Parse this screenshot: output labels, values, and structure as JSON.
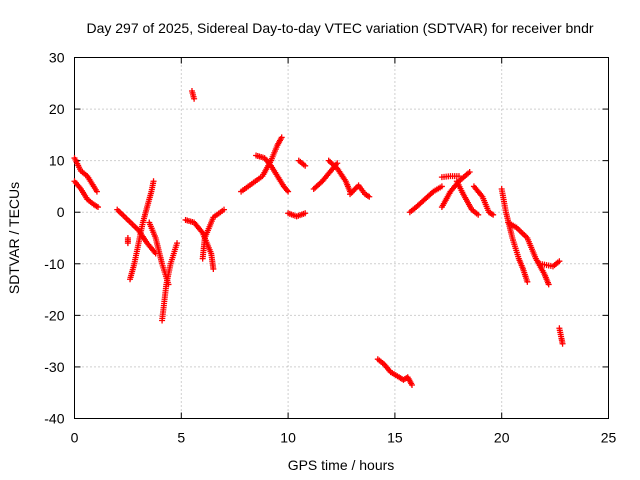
{
  "chart_data": {
    "type": "scatter",
    "title": "Day 297 of 2025, Sidereal Day-to-day VTEC variation (SDTVAR) for receiver bndr",
    "xlabel": "GPS time / hours",
    "ylabel": "SDTVAR / TECUs",
    "xlim": [
      0,
      25
    ],
    "ylim": [
      -40,
      30
    ],
    "xticks": [
      0,
      5,
      10,
      15,
      20,
      25
    ],
    "yticks": [
      -40,
      -30,
      -20,
      -10,
      0,
      10,
      20,
      30
    ],
    "grid": true,
    "marker": "plus",
    "color": "#ff0000",
    "tracks": [
      [
        [
          0.0,
          10.5
        ],
        [
          0.3,
          8.0
        ],
        [
          0.6,
          7.0
        ],
        [
          0.9,
          5.0
        ],
        [
          1.05,
          4.0
        ]
      ],
      [
        [
          0.0,
          6.0
        ],
        [
          0.3,
          4.5
        ],
        [
          0.6,
          2.5
        ],
        [
          0.9,
          1.5
        ],
        [
          1.1,
          1.0
        ]
      ],
      [
        [
          2.5,
          -5.0
        ],
        [
          2.5,
          -6.0
        ]
      ],
      [
        [
          2.6,
          -13.0
        ],
        [
          2.8,
          -10.0
        ],
        [
          3.0,
          -6.0
        ],
        [
          3.2,
          -2.0
        ],
        [
          3.4,
          1.0
        ],
        [
          3.6,
          4.0
        ],
        [
          3.7,
          6.0
        ]
      ],
      [
        [
          2.0,
          0.5
        ],
        [
          2.5,
          -1.5
        ],
        [
          3.0,
          -3.5
        ],
        [
          3.4,
          -6.0
        ],
        [
          3.8,
          -8.0
        ]
      ],
      [
        [
          3.5,
          -2.0
        ],
        [
          3.8,
          -5.0
        ],
        [
          4.1,
          -10.0
        ],
        [
          4.4,
          -14.0
        ]
      ],
      [
        [
          4.1,
          -21.0
        ],
        [
          4.3,
          -14.0
        ],
        [
          4.5,
          -10.0
        ],
        [
          4.8,
          -6.0
        ]
      ],
      [
        [
          5.5,
          23.5
        ],
        [
          5.6,
          22.0
        ]
      ],
      [
        [
          5.2,
          -1.5
        ],
        [
          5.6,
          -2.0
        ],
        [
          6.0,
          -4.0
        ],
        [
          6.4,
          -8.0
        ],
        [
          6.5,
          -11.0
        ]
      ],
      [
        [
          6.0,
          -9.0
        ],
        [
          6.1,
          -5.0
        ],
        [
          6.5,
          -1.0
        ],
        [
          7.0,
          0.5
        ]
      ],
      [
        [
          7.8,
          4.0
        ],
        [
          8.3,
          5.5
        ],
        [
          8.8,
          7.0
        ],
        [
          9.2,
          10.0
        ],
        [
          9.5,
          13.0
        ],
        [
          9.7,
          14.5
        ]
      ],
      [
        [
          8.5,
          11.0
        ],
        [
          8.9,
          10.5
        ],
        [
          9.2,
          9.0
        ],
        [
          9.5,
          7.0
        ],
        [
          9.8,
          5.0
        ],
        [
          10.0,
          4.0
        ]
      ],
      [
        [
          10.0,
          -0.2
        ],
        [
          10.4,
          -0.8
        ],
        [
          10.8,
          -0.2
        ]
      ],
      [
        [
          10.5,
          10.0
        ],
        [
          10.8,
          9.0
        ]
      ],
      [
        [
          11.2,
          4.5
        ],
        [
          11.6,
          6.0
        ],
        [
          12.0,
          8.0
        ],
        [
          12.3,
          9.5
        ]
      ],
      [
        [
          11.9,
          10.0
        ],
        [
          12.3,
          8.5
        ],
        [
          12.7,
          6.0
        ],
        [
          12.9,
          4.0
        ]
      ],
      [
        [
          12.9,
          3.5
        ],
        [
          13.3,
          5.2
        ],
        [
          13.6,
          3.5
        ],
        [
          13.8,
          3.0
        ]
      ],
      [
        [
          14.2,
          -28.5
        ],
        [
          14.5,
          -29.5
        ],
        [
          14.8,
          -31.0
        ],
        [
          15.2,
          -32.0
        ],
        [
          15.4,
          -32.5
        ],
        [
          15.6,
          -32.0
        ],
        [
          15.8,
          -33.5
        ]
      ],
      [
        [
          15.7,
          0.0
        ],
        [
          16.0,
          1.0
        ],
        [
          16.4,
          2.5
        ],
        [
          16.8,
          4.0
        ],
        [
          17.2,
          5.0
        ]
      ],
      [
        [
          17.2,
          6.8
        ],
        [
          17.6,
          7.0
        ],
        [
          18.0,
          7.0
        ]
      ],
      [
        [
          17.9,
          6.0
        ],
        [
          18.2,
          3.5
        ],
        [
          18.6,
          0.5
        ],
        [
          18.9,
          -0.5
        ]
      ],
      [
        [
          17.2,
          1.0
        ],
        [
          17.6,
          4.0
        ],
        [
          18.0,
          6.0
        ],
        [
          18.5,
          7.8
        ]
      ],
      [
        [
          18.7,
          5.0
        ],
        [
          19.1,
          3.0
        ],
        [
          19.4,
          0.0
        ],
        [
          19.6,
          -0.5
        ]
      ],
      [
        [
          20.0,
          4.5
        ],
        [
          20.2,
          0.0
        ],
        [
          20.5,
          -5.0
        ],
        [
          20.8,
          -9.0
        ],
        [
          21.0,
          -11.0
        ],
        [
          21.2,
          -13.5
        ]
      ],
      [
        [
          20.3,
          -2.0
        ],
        [
          20.7,
          -3.0
        ],
        [
          21.2,
          -5.0
        ],
        [
          21.6,
          -9.0
        ],
        [
          22.0,
          -12.0
        ],
        [
          22.2,
          -14.0
        ]
      ],
      [
        [
          21.8,
          -10.0
        ],
        [
          22.4,
          -10.5
        ],
        [
          22.7,
          -9.5
        ]
      ],
      [
        [
          22.7,
          -22.5
        ],
        [
          22.8,
          -24.5
        ],
        [
          22.85,
          -25.5
        ]
      ]
    ]
  }
}
